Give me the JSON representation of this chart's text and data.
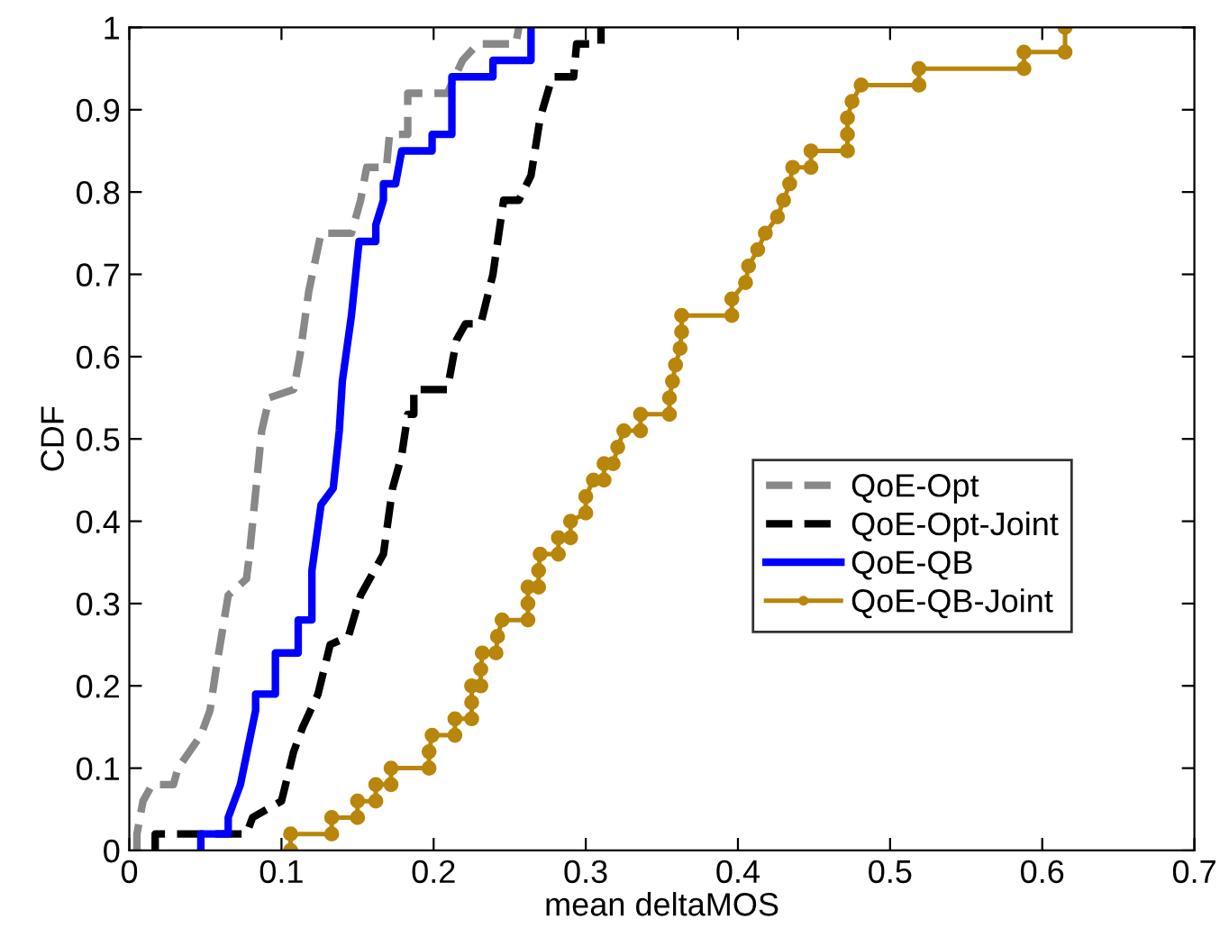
{
  "chart_data": {
    "type": "line",
    "xlabel": "mean deltaMOS",
    "ylabel": "CDF",
    "xlim": [
      0,
      0.7
    ],
    "ylim": [
      0,
      1
    ],
    "xticks": [
      0,
      0.1,
      0.2,
      0.3,
      0.4,
      0.5,
      0.6,
      0.7
    ],
    "yticks": [
      0,
      0.1,
      0.2,
      0.3,
      0.4,
      0.5,
      0.6,
      0.7,
      0.8,
      0.9,
      1
    ],
    "grid": false,
    "legend": "right",
    "series": [
      {
        "name": "QoE-Opt",
        "color": "#888888",
        "line_style": "dashed",
        "marker": "none",
        "x": [
          0.005,
          0.005,
          0.009,
          0.015,
          0.029,
          0.032,
          0.047,
          0.053,
          0.057,
          0.065,
          0.077,
          0.079,
          0.087,
          0.092,
          0.108,
          0.112,
          0.118,
          0.126,
          0.146,
          0.152,
          0.156,
          0.169,
          0.171,
          0.183,
          0.183,
          0.209,
          0.219,
          0.229,
          0.254,
          0.256
        ],
        "values": [
          0,
          0.02,
          0.06,
          0.08,
          0.08,
          0.1,
          0.14,
          0.17,
          0.22,
          0.31,
          0.33,
          0.36,
          0.51,
          0.55,
          0.56,
          0.6,
          0.68,
          0.75,
          0.75,
          0.79,
          0.83,
          0.83,
          0.87,
          0.87,
          0.92,
          0.92,
          0.96,
          0.98,
          0.98,
          1.0
        ]
      },
      {
        "name": "QoE-Opt-Joint",
        "color": "#000000",
        "line_style": "dashed",
        "marker": "none",
        "x": [
          0.017,
          0.017,
          0.077,
          0.081,
          0.1,
          0.108,
          0.114,
          0.124,
          0.132,
          0.144,
          0.152,
          0.167,
          0.173,
          0.179,
          0.183,
          0.187,
          0.187,
          0.209,
          0.215,
          0.221,
          0.231,
          0.239,
          0.246,
          0.256,
          0.264,
          0.27,
          0.278,
          0.292,
          0.294,
          0.31,
          0.31
        ],
        "values": [
          0,
          0.02,
          0.02,
          0.04,
          0.06,
          0.12,
          0.15,
          0.19,
          0.25,
          0.26,
          0.31,
          0.36,
          0.44,
          0.48,
          0.53,
          0.53,
          0.56,
          0.56,
          0.62,
          0.64,
          0.64,
          0.7,
          0.79,
          0.79,
          0.82,
          0.89,
          0.94,
          0.94,
          0.98,
          0.98,
          1.0
        ]
      },
      {
        "name": "QoE-QB",
        "color": "#0000ff",
        "line_style": "solid",
        "marker": "none",
        "x": [
          0.047,
          0.047,
          0.065,
          0.065,
          0.073,
          0.083,
          0.083,
          0.096,
          0.096,
          0.111,
          0.111,
          0.12,
          0.12,
          0.126,
          0.134,
          0.138,
          0.14,
          0.146,
          0.151,
          0.162,
          0.162,
          0.167,
          0.167,
          0.175,
          0.179,
          0.199,
          0.199,
          0.212,
          0.212,
          0.239,
          0.239,
          0.264,
          0.264
        ],
        "values": [
          0,
          0.02,
          0.02,
          0.04,
          0.08,
          0.17,
          0.19,
          0.19,
          0.24,
          0.24,
          0.28,
          0.28,
          0.34,
          0.42,
          0.44,
          0.51,
          0.57,
          0.65,
          0.74,
          0.74,
          0.76,
          0.79,
          0.81,
          0.81,
          0.85,
          0.85,
          0.87,
          0.87,
          0.94,
          0.94,
          0.96,
          0.96,
          1.0
        ]
      },
      {
        "name": "QoE-QB-Joint",
        "color": "#b8860b",
        "line_style": "solid",
        "marker": "circle",
        "x": [
          0.106,
          0.106,
          0.133,
          0.133,
          0.15,
          0.15,
          0.162,
          0.162,
          0.172,
          0.172,
          0.197,
          0.197,
          0.199,
          0.214,
          0.214,
          0.225,
          0.225,
          0.225,
          0.231,
          0.231,
          0.232,
          0.241,
          0.242,
          0.245,
          0.262,
          0.262,
          0.262,
          0.269,
          0.269,
          0.27,
          0.282,
          0.282,
          0.29,
          0.29,
          0.3,
          0.3,
          0.305,
          0.312,
          0.312,
          0.318,
          0.321,
          0.325,
          0.336,
          0.336,
          0.355,
          0.355,
          0.357,
          0.359,
          0.362,
          0.363,
          0.363,
          0.396,
          0.396,
          0.405,
          0.407,
          0.413,
          0.418,
          0.426,
          0.43,
          0.434,
          0.436,
          0.448,
          0.448,
          0.472,
          0.472,
          0.472,
          0.475,
          0.481,
          0.519,
          0.519,
          0.588,
          0.588,
          0.615,
          0.615
        ],
        "values": [
          0,
          0.02,
          0.02,
          0.04,
          0.04,
          0.06,
          0.06,
          0.08,
          0.08,
          0.1,
          0.1,
          0.12,
          0.14,
          0.14,
          0.16,
          0.16,
          0.18,
          0.2,
          0.2,
          0.22,
          0.24,
          0.24,
          0.26,
          0.28,
          0.28,
          0.3,
          0.32,
          0.32,
          0.34,
          0.36,
          0.36,
          0.38,
          0.38,
          0.4,
          0.41,
          0.43,
          0.45,
          0.45,
          0.47,
          0.47,
          0.49,
          0.51,
          0.51,
          0.53,
          0.53,
          0.55,
          0.57,
          0.59,
          0.61,
          0.63,
          0.65,
          0.65,
          0.67,
          0.69,
          0.71,
          0.73,
          0.75,
          0.77,
          0.79,
          0.81,
          0.83,
          0.83,
          0.85,
          0.85,
          0.87,
          0.89,
          0.91,
          0.93,
          0.93,
          0.95,
          0.95,
          0.97,
          0.97,
          1.0
        ]
      }
    ]
  }
}
